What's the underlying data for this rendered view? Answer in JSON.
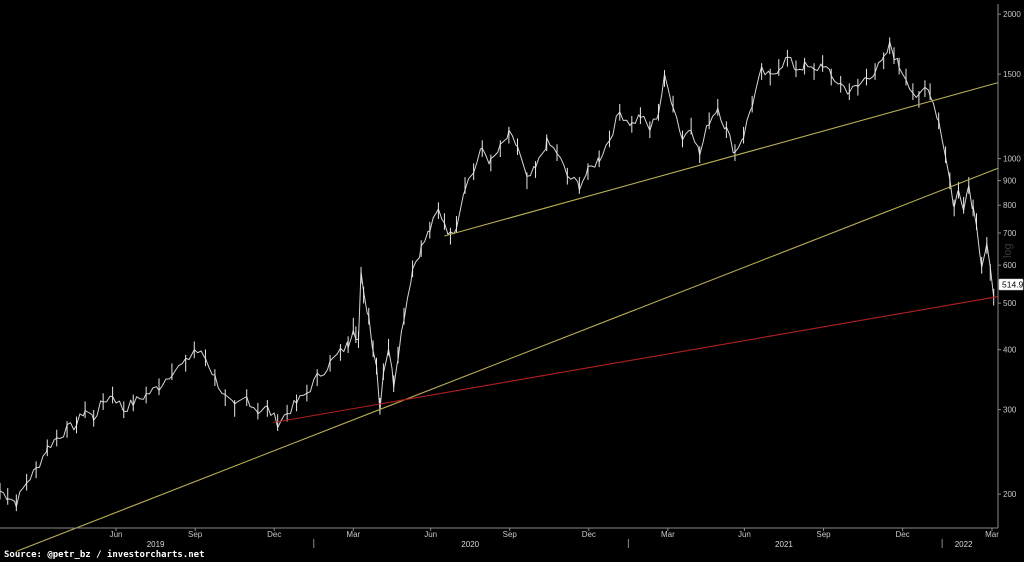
{
  "source_text": "Source: @petr_bz / investorcharts.net",
  "watermark": "log",
  "chart_data": {
    "type": "line",
    "scale": "log",
    "ylim": [
      170,
      2100
    ],
    "xlim": [
      "2019-01-01",
      "2022-03-07"
    ],
    "y_ticks": [
      200,
      300,
      400,
      500,
      600,
      700,
      800,
      900,
      1000,
      1500,
      2000
    ],
    "month_ticks": [
      {
        "label": "Jun",
        "date": "2019-05-16"
      },
      {
        "label": "Sep",
        "date": "2019-08-16"
      },
      {
        "label": "Dec",
        "date": "2019-11-16"
      },
      {
        "label": "Mar",
        "date": "2020-02-16"
      },
      {
        "label": "Jun",
        "date": "2020-05-16"
      },
      {
        "label": "Sep",
        "date": "2020-08-16"
      },
      {
        "label": "Dec",
        "date": "2020-11-16"
      },
      {
        "label": "Mar",
        "date": "2021-02-16"
      },
      {
        "label": "Jun",
        "date": "2021-05-16"
      },
      {
        "label": "Sep",
        "date": "2021-08-16"
      },
      {
        "label": "Dec",
        "date": "2021-11-16"
      },
      {
        "label": "Mar",
        "date": "2022-02-28"
      }
    ],
    "year_labels": [
      {
        "label": "2019",
        "date": "2019-07-01"
      },
      {
        "label": "2020",
        "date": "2020-07-01"
      },
      {
        "label": "2021",
        "date": "2021-07-01"
      },
      {
        "label": "2022",
        "date": "2022-01-26"
      }
    ],
    "year_separators": [
      "2020-01-01",
      "2021-01-01",
      "2022-01-01"
    ],
    "last_value": "514.9",
    "series": [
      {
        "values": [
          [
            "2019-01-01",
            203
          ],
          [
            "2019-01-10",
            198
          ],
          [
            "2019-01-20",
            192
          ],
          [
            "2019-02-01",
            212
          ],
          [
            "2019-02-12",
            225
          ],
          [
            "2019-02-25",
            250
          ],
          [
            "2019-03-08",
            262
          ],
          [
            "2019-03-20",
            273
          ],
          [
            "2019-03-31",
            279
          ],
          [
            "2019-04-10",
            300
          ],
          [
            "2019-04-20",
            288
          ],
          [
            "2019-05-01",
            312
          ],
          [
            "2019-05-12",
            322
          ],
          [
            "2019-05-25",
            300
          ],
          [
            "2019-06-05",
            310
          ],
          [
            "2019-06-20",
            322
          ],
          [
            "2019-07-05",
            335
          ],
          [
            "2019-07-20",
            360
          ],
          [
            "2019-08-05",
            375
          ],
          [
            "2019-08-15",
            400
          ],
          [
            "2019-08-28",
            385
          ],
          [
            "2019-09-08",
            350
          ],
          [
            "2019-09-20",
            318
          ],
          [
            "2019-10-01",
            302
          ],
          [
            "2019-10-15",
            318
          ],
          [
            "2019-10-28",
            298
          ],
          [
            "2019-11-08",
            302
          ],
          [
            "2019-11-20",
            282
          ],
          [
            "2019-12-01",
            295
          ],
          [
            "2019-12-12",
            310
          ],
          [
            "2019-12-24",
            325
          ],
          [
            "2020-01-05",
            350
          ],
          [
            "2020-01-20",
            375
          ],
          [
            "2020-02-01",
            395
          ],
          [
            "2020-02-10",
            410
          ],
          [
            "2020-02-16",
            448
          ],
          [
            "2020-02-19",
            430
          ],
          [
            "2020-02-22",
            420
          ],
          [
            "2020-02-25",
            572
          ],
          [
            "2020-02-28",
            520
          ],
          [
            "2020-03-05",
            470
          ],
          [
            "2020-03-10",
            402
          ],
          [
            "2020-03-14",
            370
          ],
          [
            "2020-03-18",
            305
          ],
          [
            "2020-03-22",
            360
          ],
          [
            "2020-03-28",
            405
          ],
          [
            "2020-04-03",
            340
          ],
          [
            "2020-04-08",
            390
          ],
          [
            "2020-04-15",
            470
          ],
          [
            "2020-04-25",
            590
          ],
          [
            "2020-05-05",
            650
          ],
          [
            "2020-05-15",
            710
          ],
          [
            "2020-05-25",
            780
          ],
          [
            "2020-06-01",
            740
          ],
          [
            "2020-06-08",
            690
          ],
          [
            "2020-06-15",
            730
          ],
          [
            "2020-06-25",
            880
          ],
          [
            "2020-07-05",
            940
          ],
          [
            "2020-07-15",
            1050
          ],
          [
            "2020-07-25",
            980
          ],
          [
            "2020-08-05",
            1050
          ],
          [
            "2020-08-15",
            1120
          ],
          [
            "2020-08-25",
            1060
          ],
          [
            "2020-09-05",
            900
          ],
          [
            "2020-09-15",
            950
          ],
          [
            "2020-09-28",
            1080
          ],
          [
            "2020-10-10",
            1030
          ],
          [
            "2020-10-22",
            920
          ],
          [
            "2020-11-05",
            880
          ],
          [
            "2020-11-15",
            940
          ],
          [
            "2020-11-28",
            1000
          ],
          [
            "2020-12-10",
            1100
          ],
          [
            "2020-12-22",
            1250
          ],
          [
            "2021-01-05",
            1180
          ],
          [
            "2021-01-15",
            1230
          ],
          [
            "2021-01-26",
            1150
          ],
          [
            "2021-02-05",
            1250
          ],
          [
            "2021-02-12",
            1470
          ],
          [
            "2021-02-22",
            1300
          ],
          [
            "2021-03-05",
            1100
          ],
          [
            "2021-03-15",
            1170
          ],
          [
            "2021-03-25",
            1020
          ],
          [
            "2021-04-05",
            1200
          ],
          [
            "2021-04-15",
            1280
          ],
          [
            "2021-04-25",
            1150
          ],
          [
            "2021-05-05",
            1030
          ],
          [
            "2021-05-15",
            1120
          ],
          [
            "2021-05-25",
            1300
          ],
          [
            "2021-06-05",
            1520
          ],
          [
            "2021-06-15",
            1480
          ],
          [
            "2021-06-25",
            1550
          ],
          [
            "2021-07-05",
            1620
          ],
          [
            "2021-07-15",
            1540
          ],
          [
            "2021-07-25",
            1560
          ],
          [
            "2021-08-05",
            1520
          ],
          [
            "2021-08-15",
            1580
          ],
          [
            "2021-08-25",
            1480
          ],
          [
            "2021-09-05",
            1430
          ],
          [
            "2021-09-15",
            1380
          ],
          [
            "2021-09-25",
            1410
          ],
          [
            "2021-10-05",
            1480
          ],
          [
            "2021-10-15",
            1520
          ],
          [
            "2021-10-25",
            1600
          ],
          [
            "2021-11-01",
            1720
          ],
          [
            "2021-11-06",
            1640
          ],
          [
            "2021-11-12",
            1560
          ],
          [
            "2021-11-20",
            1480
          ],
          [
            "2021-11-28",
            1380
          ],
          [
            "2021-12-05",
            1330
          ],
          [
            "2021-12-12",
            1400
          ],
          [
            "2021-12-18",
            1380
          ],
          [
            "2021-12-28",
            1200
          ],
          [
            "2022-01-05",
            1020
          ],
          [
            "2022-01-10",
            900
          ],
          [
            "2022-01-15",
            790
          ],
          [
            "2022-01-20",
            860
          ],
          [
            "2022-01-26",
            800
          ],
          [
            "2022-02-01",
            880
          ],
          [
            "2022-02-06",
            790
          ],
          [
            "2022-02-10",
            740
          ],
          [
            "2022-02-16",
            600
          ],
          [
            "2022-02-22",
            660
          ],
          [
            "2022-02-26",
            580
          ],
          [
            "2022-03-02",
            514.9
          ]
        ]
      }
    ],
    "trendlines": [
      {
        "color": "#b8ae55",
        "points": [
          [
            "2019-01-20",
            152
          ],
          [
            "2022-03-07",
            955
          ]
        ]
      },
      {
        "color": "#b8ae55",
        "points": [
          [
            "2020-06-01",
            690
          ],
          [
            "2022-03-07",
            1440
          ]
        ]
      },
      {
        "color": "#b02020",
        "points": [
          [
            "2019-11-15",
            282
          ],
          [
            "2022-03-07",
            516
          ]
        ]
      }
    ]
  }
}
